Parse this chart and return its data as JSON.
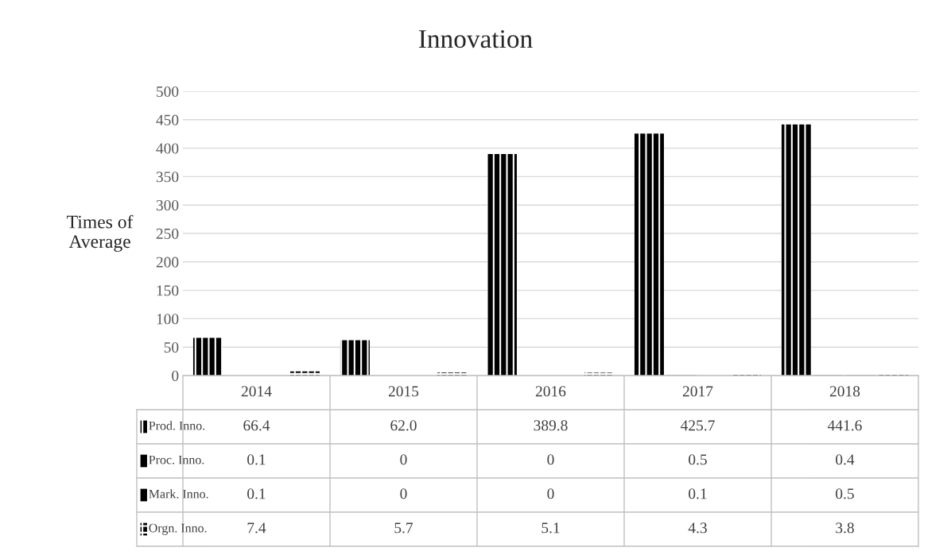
{
  "chart_data": {
    "type": "bar",
    "title": "Innovation",
    "ylabel": "Times of\nAverage",
    "categories": [
      "2014",
      "2015",
      "2016",
      "2017",
      "2018"
    ],
    "series": [
      {
        "name": "Prod. Inno.",
        "color": "#000000",
        "values": [
          66.4,
          62.0,
          389.8,
          425.7,
          441.6
        ],
        "value_labels": [
          "66.4",
          "62.0",
          "389.8",
          "425.7",
          "441.6"
        ]
      },
      {
        "name": "Proc. Inno.",
        "color": "#000000",
        "values": [
          0.1,
          0,
          0,
          0.5,
          0.4
        ],
        "value_labels": [
          "0.1",
          "0",
          "0",
          "0.5",
          "0.4"
        ]
      },
      {
        "name": "Mark. Inno.",
        "color": "#000000",
        "values": [
          0.1,
          0,
          0,
          0.1,
          0.5
        ],
        "value_labels": [
          "0.1",
          "0",
          "0",
          "0.1",
          "0.5"
        ]
      },
      {
        "name": "Orgn. Inno.",
        "color": "#000000",
        "values": [
          7.4,
          5.7,
          5.1,
          4.3,
          3.8
        ],
        "value_labels": [
          "7.4",
          "5.7",
          "5.1",
          "4.3",
          "3.8"
        ]
      }
    ],
    "ylim": [
      0,
      500
    ],
    "yticks": [
      0,
      50,
      100,
      150,
      200,
      250,
      300,
      350,
      400,
      450,
      500
    ],
    "grid": "y",
    "tick_labels": "y",
    "legend": "bottom left"
  }
}
